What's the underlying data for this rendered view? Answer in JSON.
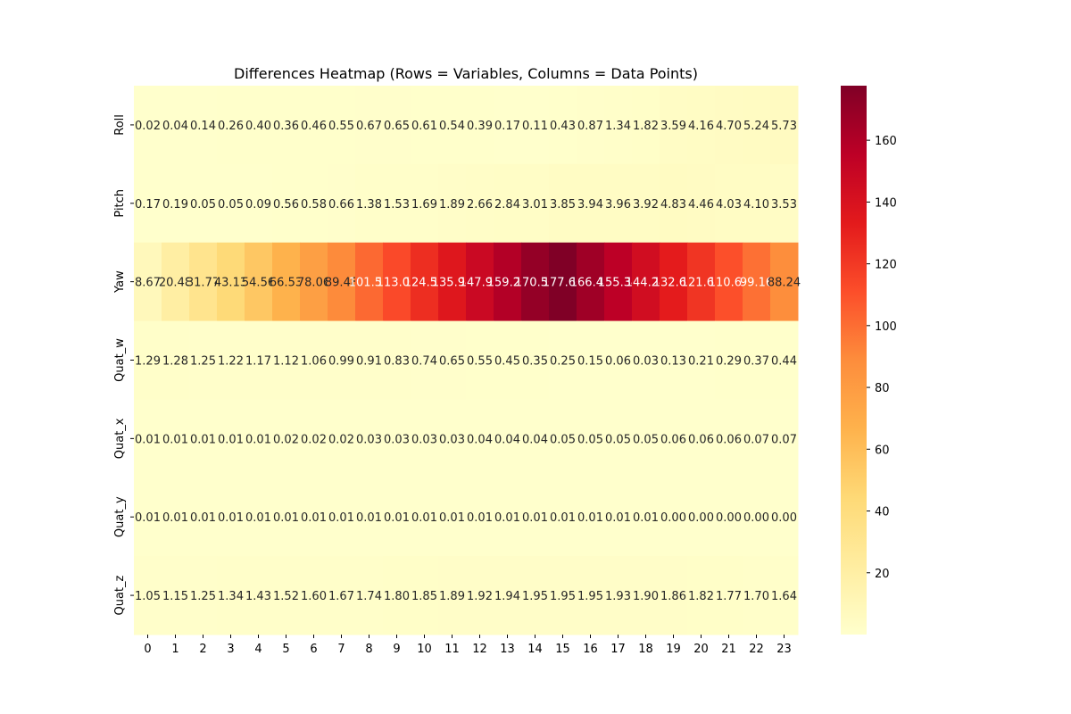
{
  "chart_data": {
    "type": "heatmap",
    "title": "Differences Heatmap (Rows = Variables, Columns = Data Points)",
    "xlabel": "",
    "ylabel": "",
    "columns": [
      "0",
      "1",
      "2",
      "3",
      "4",
      "5",
      "6",
      "7",
      "8",
      "9",
      "10",
      "11",
      "12",
      "13",
      "14",
      "15",
      "16",
      "17",
      "18",
      "19",
      "20",
      "21",
      "22",
      "23"
    ],
    "rows": [
      "Roll",
      "Pitch",
      "Yaw",
      "Quat_w",
      "Quat_x",
      "Quat_y",
      "Quat_z"
    ],
    "values": [
      [
        0.02,
        0.04,
        0.14,
        0.26,
        0.4,
        0.36,
        0.46,
        0.55,
        0.67,
        0.65,
        0.61,
        0.54,
        0.39,
        0.17,
        0.11,
        0.43,
        0.87,
        1.34,
        1.82,
        3.59,
        4.16,
        4.7,
        5.24,
        5.73
      ],
      [
        0.17,
        0.19,
        0.05,
        0.05,
        0.09,
        0.56,
        0.58,
        0.66,
        1.38,
        1.53,
        1.69,
        1.89,
        2.66,
        2.84,
        3.01,
        3.85,
        3.94,
        3.96,
        3.92,
        4.83,
        4.46,
        4.03,
        4.1,
        3.53
      ],
      [
        8.67,
        20.48,
        31.77,
        43.13,
        54.56,
        66.53,
        78.06,
        89.48,
        101.57,
        113.05,
        124.53,
        135.94,
        147.95,
        159.26,
        170.56,
        177.66,
        166.45,
        155.34,
        144.24,
        132.62,
        121.65,
        110.69,
        99.16,
        88.24
      ],
      [
        1.29,
        1.28,
        1.25,
        1.22,
        1.17,
        1.12,
        1.06,
        0.99,
        0.91,
        0.83,
        0.74,
        0.65,
        0.55,
        0.45,
        0.35,
        0.25,
        0.15,
        0.06,
        0.03,
        0.13,
        0.21,
        0.29,
        0.37,
        0.44
      ],
      [
        0.01,
        0.01,
        0.01,
        0.01,
        0.01,
        0.02,
        0.02,
        0.02,
        0.03,
        0.03,
        0.03,
        0.03,
        0.04,
        0.04,
        0.04,
        0.05,
        0.05,
        0.05,
        0.05,
        0.06,
        0.06,
        0.06,
        0.07,
        0.07
      ],
      [
        0.01,
        0.01,
        0.01,
        0.01,
        0.01,
        0.01,
        0.01,
        0.01,
        0.01,
        0.01,
        0.01,
        0.01,
        0.01,
        0.01,
        0.01,
        0.01,
        0.01,
        0.01,
        0.01,
        0.0,
        0.0,
        0.0,
        0.0,
        0.0
      ],
      [
        1.05,
        1.15,
        1.25,
        1.34,
        1.43,
        1.52,
        1.6,
        1.67,
        1.74,
        1.8,
        1.85,
        1.89,
        1.92,
        1.94,
        1.95,
        1.95,
        1.95,
        1.93,
        1.9,
        1.86,
        1.82,
        1.77,
        1.7,
        1.64
      ]
    ],
    "value_format": "2 decimals",
    "colormap": "YlOrRd",
    "colorbar": {
      "min": 0,
      "max": 177.66,
      "ticks": [
        20,
        40,
        60,
        80,
        100,
        120,
        140,
        160
      ]
    },
    "grid": false,
    "legend": "colorbar-right"
  }
}
